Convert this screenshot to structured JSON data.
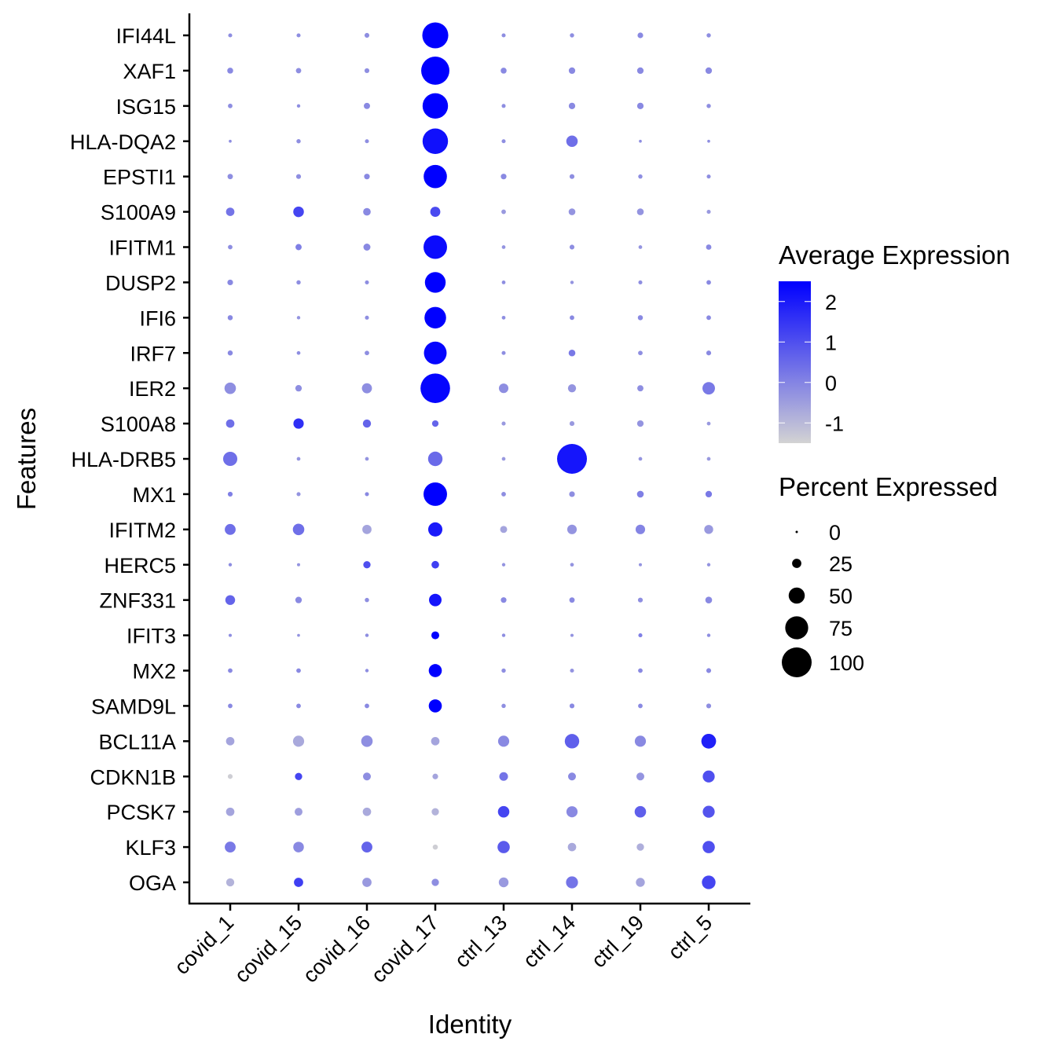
{
  "chart_data": {
    "type": "scatter",
    "subtype": "dotplot",
    "xlabel": "Identity",
    "ylabel": "Features",
    "categories": [
      "covid_1",
      "covid_15",
      "covid_16",
      "covid_17",
      "ctrl_13",
      "ctrl_14",
      "ctrl_19",
      "ctrl_5"
    ],
    "features": [
      "IFI44L",
      "XAF1",
      "ISG15",
      "HLA-DQA2",
      "EPSTI1",
      "S100A9",
      "IFITM1",
      "DUSP2",
      "IFI6",
      "IRF7",
      "IER2",
      "S100A8",
      "HLA-DRB5",
      "MX1",
      "IFITM2",
      "HERC5",
      "ZNF331",
      "IFIT3",
      "MX2",
      "SAMD9L",
      "BCL11A",
      "CDKN1B",
      "PCSK7",
      "KLF3",
      "OGA"
    ],
    "avg_expression": [
      [
        -0.2,
        -0.2,
        -0.2,
        2.5,
        -0.2,
        -0.2,
        -0.1,
        -0.2
      ],
      [
        -0.1,
        -0.2,
        -0.2,
        2.5,
        -0.1,
        -0.1,
        -0.1,
        -0.1
      ],
      [
        -0.2,
        -0.2,
        -0.1,
        2.5,
        -0.2,
        -0.1,
        -0.1,
        -0.2
      ],
      [
        -0.2,
        -0.2,
        -0.2,
        2.2,
        -0.2,
        0.4,
        -0.2,
        -0.2
      ],
      [
        -0.2,
        -0.2,
        -0.1,
        2.5,
        -0.1,
        -0.2,
        -0.2,
        -0.2
      ],
      [
        0.3,
        1.2,
        -0.1,
        1.1,
        -0.4,
        -0.3,
        -0.3,
        -0.4
      ],
      [
        -0.2,
        0.1,
        -0.1,
        2.3,
        -0.3,
        -0.2,
        -0.3,
        -0.1
      ],
      [
        -0.1,
        -0.2,
        -0.2,
        2.5,
        -0.2,
        -0.3,
        -0.2,
        -0.1
      ],
      [
        -0.1,
        -0.3,
        -0.2,
        2.5,
        -0.2,
        -0.1,
        -0.1,
        -0.1
      ],
      [
        -0.1,
        -0.2,
        -0.2,
        2.4,
        -0.2,
        0.2,
        -0.2,
        -0.1
      ],
      [
        -0.2,
        -0.2,
        -0.2,
        2.4,
        -0.2,
        -0.3,
        -0.2,
        0.2
      ],
      [
        0.4,
        1.6,
        0.6,
        0.6,
        -0.4,
        -0.4,
        -0.3,
        -0.4
      ],
      [
        0.4,
        -0.3,
        -0.3,
        0.5,
        -0.4,
        2.1,
        -0.3,
        -0.4
      ],
      [
        0.1,
        -0.3,
        -0.1,
        2.5,
        -0.2,
        -0.2,
        0.1,
        0.2
      ],
      [
        0.4,
        0.4,
        -0.6,
        2.0,
        -0.6,
        -0.3,
        0.0,
        -0.4
      ],
      [
        -0.2,
        -0.3,
        1.0,
        1.3,
        -0.3,
        -0.3,
        -0.3,
        -0.3
      ],
      [
        0.6,
        -0.1,
        -0.2,
        2.1,
        -0.1,
        -0.1,
        -0.2,
        -0.1
      ],
      [
        -0.2,
        -0.3,
        -0.2,
        2.5,
        -0.2,
        -0.3,
        0.1,
        -0.2
      ],
      [
        -0.1,
        -0.1,
        -0.2,
        2.5,
        -0.2,
        -0.3,
        -0.1,
        -0.1
      ],
      [
        -0.1,
        -0.1,
        -0.1,
        2.5,
        -0.2,
        -0.1,
        -0.1,
        -0.2
      ],
      [
        -0.6,
        -0.7,
        -0.2,
        -0.6,
        -0.1,
        0.7,
        -0.1,
        1.9
      ],
      [
        -1.4,
        1.2,
        -0.2,
        -0.6,
        0.3,
        -0.1,
        -0.3,
        1.0
      ],
      [
        -0.6,
        -0.5,
        -0.7,
        -0.9,
        1.2,
        -0.1,
        0.7,
        0.9
      ],
      [
        0.2,
        -0.1,
        0.6,
        -1.4,
        0.8,
        -0.7,
        -0.8,
        1.0
      ],
      [
        -0.9,
        1.3,
        -0.4,
        -0.2,
        -0.4,
        0.3,
        -0.6,
        1.2
      ]
    ],
    "pct_expressed": [
      [
        6,
        6,
        9,
        86,
        6,
        7,
        12,
        7
      ],
      [
        13,
        11,
        9,
        94,
        13,
        15,
        15,
        15
      ],
      [
        8,
        4,
        14,
        84,
        6,
        15,
        15,
        7
      ],
      [
        2,
        7,
        6,
        84,
        6,
        33,
        2,
        2
      ],
      [
        11,
        9,
        12,
        76,
        12,
        9,
        7,
        6
      ],
      [
        22,
        30,
        19,
        28,
        8,
        16,
        16,
        6
      ],
      [
        8,
        14,
        17,
        77,
        5,
        9,
        5,
        11
      ],
      [
        12,
        7,
        6,
        67,
        5,
        4,
        6,
        8
      ],
      [
        10,
        4,
        6,
        70,
        5,
        8,
        10,
        8
      ],
      [
        10,
        5,
        8,
        74,
        6,
        16,
        8,
        9
      ],
      [
        33,
        15,
        28,
        99,
        26,
        21,
        14,
        37
      ],
      [
        22,
        29,
        21,
        15,
        6,
        9,
        15,
        5
      ],
      [
        43,
        5,
        5,
        44,
        5,
        100,
        5,
        5
      ],
      [
        9,
        6,
        6,
        77,
        8,
        12,
        16,
        15
      ],
      [
        31,
        33,
        25,
        43,
        17,
        26,
        26,
        24
      ],
      [
        4,
        3,
        18,
        19,
        4,
        5,
        3,
        4
      ],
      [
        27,
        15,
        7,
        37,
        12,
        11,
        9,
        16
      ],
      [
        3,
        2,
        4,
        20,
        4,
        3,
        6,
        4
      ],
      [
        8,
        8,
        4,
        39,
        7,
        6,
        8,
        9
      ],
      [
        8,
        8,
        8,
        39,
        7,
        9,
        8,
        9
      ],
      [
        22,
        32,
        33,
        22,
        32,
        44,
        32,
        45
      ],
      [
        9,
        18,
        20,
        12,
        23,
        20,
        20,
        35
      ],
      [
        22,
        20,
        22,
        18,
        33,
        32,
        33,
        35
      ],
      [
        31,
        30,
        31,
        10,
        36,
        22,
        18,
        36
      ],
      [
        21,
        25,
        25,
        18,
        27,
        35,
        24,
        41
      ]
    ],
    "color_scale": {
      "low": "#d3d3d3",
      "high": "#0000ff",
      "limits": [
        -1.5,
        2.5
      ]
    },
    "legends": {
      "color": {
        "title": "Average Expression",
        "ticks": [
          2,
          1,
          0,
          -1
        ]
      },
      "size": {
        "title": "Percent Expressed",
        "values": [
          0,
          25,
          50,
          75,
          100
        ]
      }
    },
    "grid": false,
    "legend_position": "right"
  }
}
